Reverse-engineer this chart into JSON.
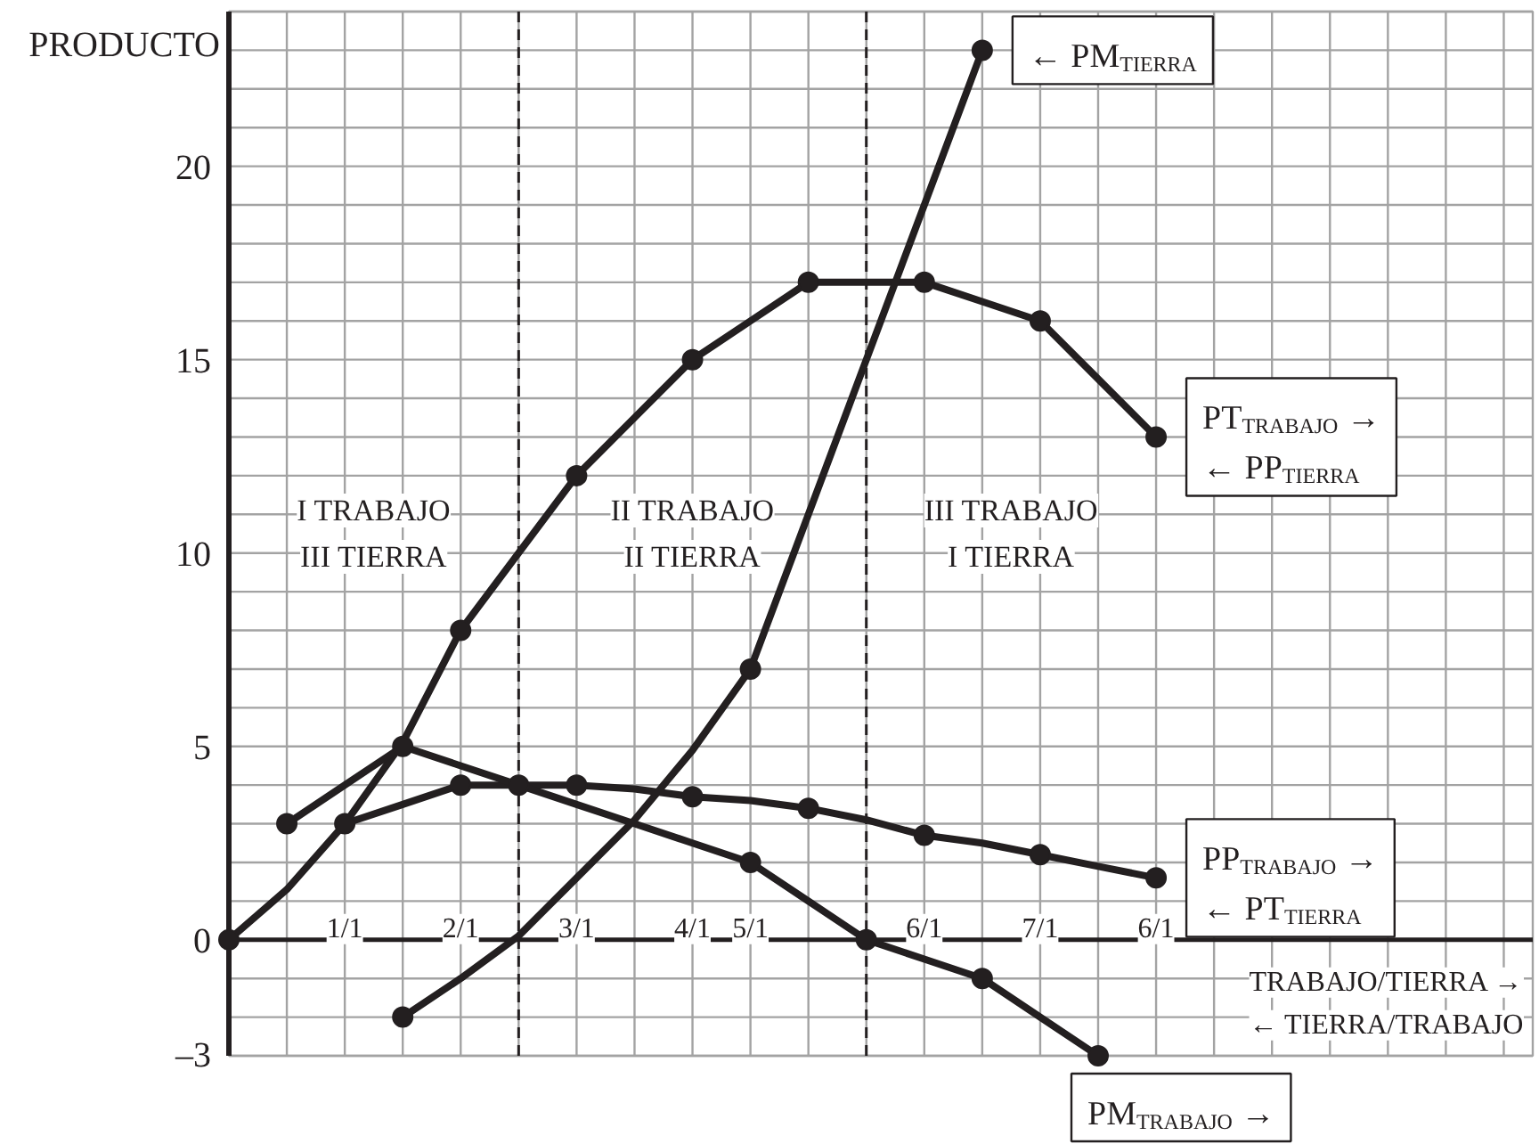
{
  "chart_data": {
    "type": "line",
    "ylabel": "PRODUCTO",
    "xlabel": "TRABAJO/TIERRA →",
    "categories": [
      null,
      null,
      "1/1",
      null,
      "2/1",
      null,
      "3/1",
      null,
      "4/1",
      "5/1",
      null,
      null,
      "6/1",
      null,
      "7/1",
      null,
      "6/1",
      null,
      null,
      null,
      null,
      null,
      null
    ],
    "ylim": [
      -3,
      24
    ],
    "yticks": [
      {
        "value": -3,
        "label": "–3"
      },
      {
        "value": -2,
        "label": null
      },
      {
        "value": -1,
        "label": null
      },
      {
        "value": 0,
        "label": "0"
      },
      {
        "value": 1,
        "label": null
      },
      {
        "value": 2,
        "label": null
      },
      {
        "value": 3,
        "label": null
      },
      {
        "value": 4,
        "label": null
      },
      {
        "value": 5,
        "label": "5"
      },
      {
        "value": 6,
        "label": null
      },
      {
        "value": 7,
        "label": null
      },
      {
        "value": 8,
        "label": null
      },
      {
        "value": 9,
        "label": null
      },
      {
        "value": 10,
        "label": "10"
      },
      {
        "value": 11,
        "label": null
      },
      {
        "value": 12,
        "label": null
      },
      {
        "value": 13,
        "label": null
      },
      {
        "value": 14,
        "label": null
      },
      {
        "value": 15,
        "label": "15"
      },
      {
        "value": 16,
        "label": null
      },
      {
        "value": 17,
        "label": null
      },
      {
        "value": 18,
        "label": null
      },
      {
        "value": 19,
        "label": null
      },
      {
        "value": 20,
        "label": "20"
      },
      {
        "value": 21,
        "label": null
      },
      {
        "value": 22,
        "label": null
      },
      {
        "value": 23,
        "label": null
      },
      {
        "value": 24,
        "label": null
      }
    ],
    "grid": true,
    "marker": "circle",
    "series": [
      {
        "name": "PT$_{TRABAJO}$ →\n← PP$_{TIERRA}$",
        "color": "#231f20",
        "marker": "none",
        "values": [
          0,
          1.3,
          3,
          5.1,
          8,
          10,
          12,
          13.5,
          15,
          16,
          17,
          17,
          17,
          16.5,
          16,
          14.5,
          13,
          null,
          null,
          null,
          null,
          null,
          null
        ]
      },
      {
        "name": "← PM$_{TIERRA}$",
        "color": "#231f20",
        "marker": "none",
        "values": [
          null,
          null,
          null,
          -2,
          -1,
          0.1,
          1.6,
          3.1,
          4.9,
          7,
          11,
          15,
          19,
          23,
          null,
          null,
          null,
          null,
          null,
          null,
          null,
          null,
          null
        ]
      },
      {
        "name": "PP$_{TRABAJO}$ →\n← PT$_{TIERRA}$",
        "color": "#231f20",
        "marker": "none",
        "values": [
          null,
          null,
          3,
          3.5,
          4,
          4,
          4,
          3.9,
          3.7,
          3.6,
          3.4,
          3.1,
          2.7,
          2.5,
          2.2,
          1.9,
          1.6,
          null,
          null,
          null,
          null,
          null,
          null
        ]
      },
      {
        "name": "PM$_{TRABAJO}$ →",
        "color": "#231f20",
        "marker": "none",
        "values": [
          null,
          3,
          4,
          5,
          4.5,
          4,
          3.5,
          3,
          2.5,
          2,
          1,
          0,
          -0.5,
          -1,
          -2,
          -3,
          null,
          null,
          null,
          null,
          null,
          null,
          null
        ]
      },
      {
        "type": "scatter",
        "color": "#231f20",
        "values": [
          0,
          null,
          null,
          null,
          8,
          null,
          12,
          null,
          15,
          null,
          17,
          null,
          17,
          null,
          16,
          null,
          13,
          null,
          null,
          null,
          null,
          null,
          null
        ]
      },
      {
        "type": "scatter",
        "color": "#231f20",
        "values": [
          null,
          null,
          null,
          -2,
          null,
          null,
          null,
          null,
          null,
          7,
          null,
          null,
          null,
          23,
          null,
          null,
          null,
          null,
          null,
          null,
          null,
          null,
          null
        ]
      },
      {
        "type": "scatter",
        "color": "#231f20",
        "values": [
          null,
          null,
          3,
          null,
          4,
          4,
          4,
          null,
          3.7,
          null,
          3.4,
          null,
          2.7,
          null,
          2.2,
          null,
          1.6,
          null,
          null,
          null,
          null,
          null,
          null
        ]
      },
      {
        "type": "scatter",
        "color": "#231f20",
        "values": [
          null,
          3,
          null,
          5,
          null,
          null,
          null,
          null,
          null,
          2,
          null,
          0,
          null,
          -1,
          null,
          -3,
          null,
          null,
          null,
          null,
          null,
          null,
          null
        ]
      }
    ],
    "annotations": [
      "I TRABAJO\nIII TIERRA",
      "II TRABAJO\nII TIERRA",
      "III TRABAJO\nI TIERRA",
      "← TIERRA/TRABAJO"
    ]
  }
}
